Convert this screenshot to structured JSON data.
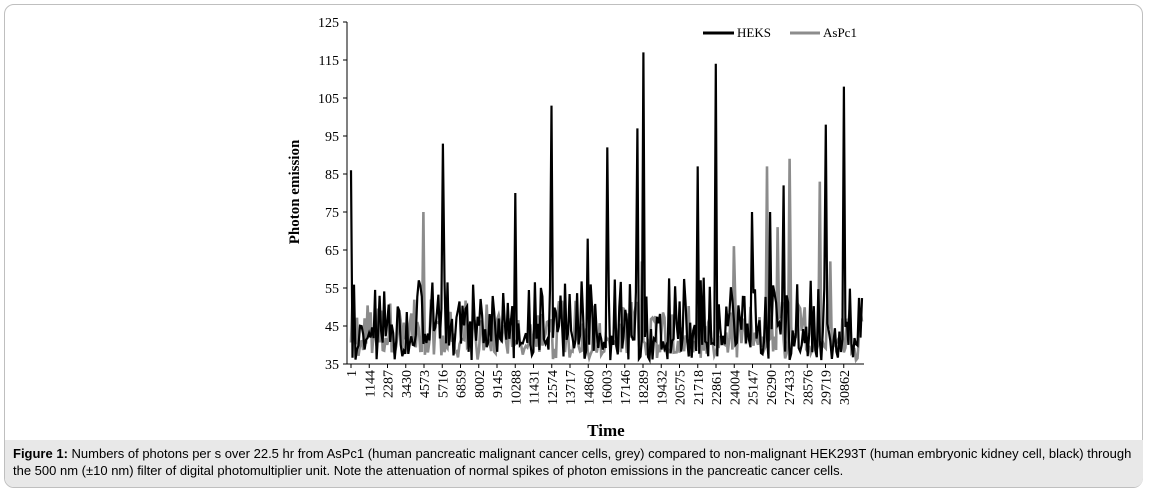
{
  "chart_data": {
    "type": "line",
    "xlabel": "Time",
    "ylabel": "Photon emission",
    "ylim": [
      35,
      125
    ],
    "yticks": [
      35,
      45,
      55,
      65,
      75,
      85,
      95,
      105,
      115,
      125
    ],
    "x_tick_labels": [
      "1",
      "1144",
      "2287",
      "3430",
      "4573",
      "5716",
      "6859",
      "8002",
      "9145",
      "10288",
      "11431",
      "12574",
      "13717",
      "14860",
      "16003",
      "17146",
      "18289",
      "19432",
      "20575",
      "21718",
      "22861",
      "24004",
      "25147",
      "26290",
      "27433",
      "28576",
      "29719",
      "30862"
    ],
    "xlim": [
      1,
      32005
    ],
    "legend_position": "top-right",
    "grid": false,
    "series": [
      {
        "name": "HEKS",
        "color": "#000000",
        "spikes": [
          [
            1,
            86
          ],
          [
            5716,
            93
          ],
          [
            10288,
            80
          ],
          [
            12574,
            103
          ],
          [
            14860,
            68
          ],
          [
            16003,
            92
          ],
          [
            17975,
            97
          ],
          [
            18289,
            117
          ],
          [
            21718,
            87
          ],
          [
            22861,
            114
          ],
          [
            25147,
            75
          ],
          [
            26290,
            75
          ],
          [
            27120,
            82
          ],
          [
            29719,
            98
          ],
          [
            30862,
            108
          ]
        ],
        "baseline": [
          40,
          58
        ]
      },
      {
        "name": "AsPc1",
        "color": "#8c8c8c",
        "spikes": [
          [
            4573,
            75
          ],
          [
            18175,
            62
          ],
          [
            24004,
            66
          ],
          [
            26100,
            87
          ],
          [
            26690,
            71
          ],
          [
            27433,
            89
          ],
          [
            29400,
            83
          ],
          [
            30000,
            62
          ]
        ],
        "baseline": [
          38,
          52
        ]
      }
    ]
  },
  "caption": {
    "label": "Figure 1:",
    "text": " Numbers of photons per s over 22.5 hr from AsPc1 (human pancreatic malignant cancer cells, grey) compared to non-malignant HEK293T (human embryonic kidney cell, black) through the 500 nm (±10 nm) filter of digital photomultiplier unit. Note the attenuation of normal spikes of photon emissions in the pancreatic cancer cells."
  }
}
